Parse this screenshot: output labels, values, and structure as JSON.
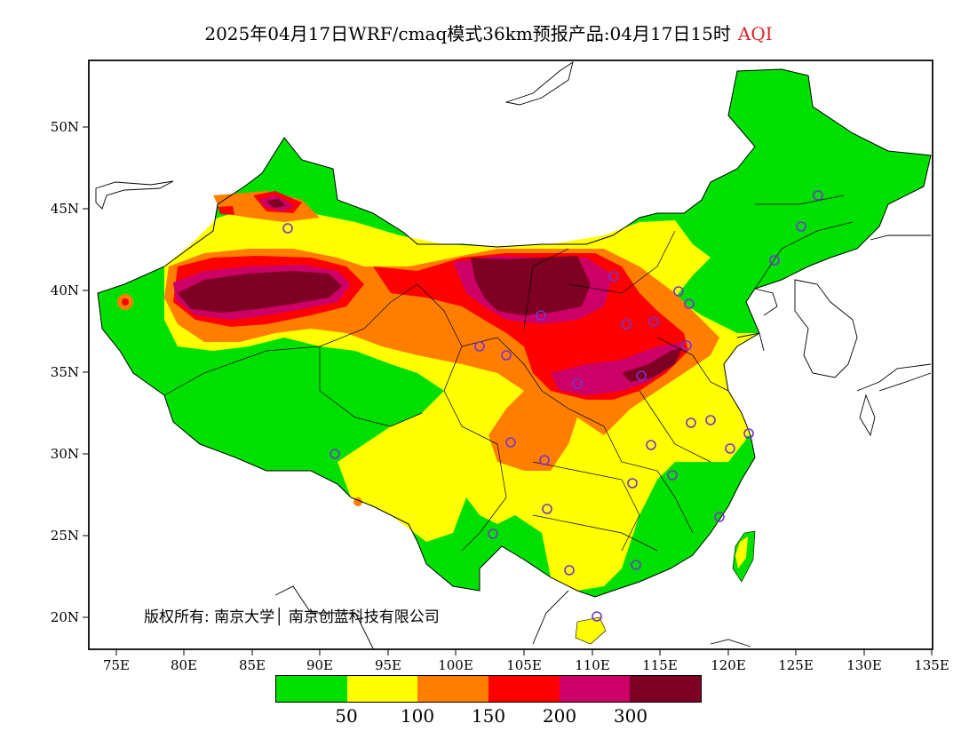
{
  "title": {
    "main": "2025年04月17日WRF/cmaq模式36km预报产品:04月17日15时",
    "variable": "AQI"
  },
  "axes": {
    "lat_labels": [
      "50N",
      "45N",
      "40N",
      "35N",
      "30N",
      "25N",
      "20N"
    ],
    "lon_labels": [
      "75E",
      "80E",
      "85E",
      "90E",
      "95E",
      "100E",
      "105E",
      "110E",
      "115E",
      "120E",
      "125E",
      "130E",
      "135E"
    ]
  },
  "legend": {
    "colors": [
      "#00e000",
      "#ffff00",
      "#ff7e00",
      "#ff0000",
      "#cc0066",
      "#7e0023"
    ],
    "labels": [
      "50",
      "100",
      "150",
      "200",
      "300"
    ]
  },
  "copyright": "版权所有: 南京大学│ 南京创蓝科技有限公司",
  "stations_icon": "circle-marker-icon"
}
